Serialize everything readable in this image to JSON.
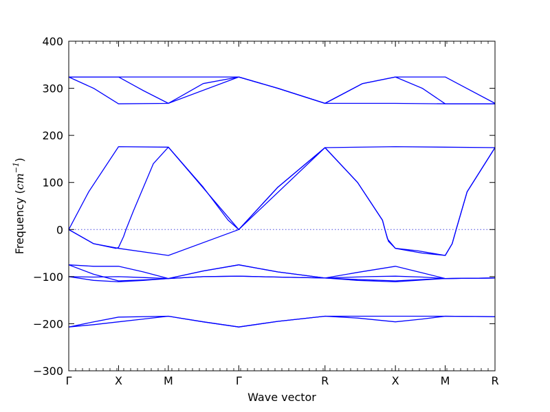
{
  "chart_data": {
    "type": "line",
    "title": "",
    "xlabel": "Wave vector",
    "ylabel_prefix": "Frequency (",
    "ylabel_unit": "cm",
    "ylabel_exp": "−1",
    "ylabel_suffix": ")",
    "ylim": [
      -300,
      400
    ],
    "yticks": [
      -300,
      -200,
      -100,
      0,
      100,
      200,
      300,
      400
    ],
    "grid": false,
    "line_color": "#0000ff",
    "zero_line_color": "#4444dd",
    "high_symmetry_points": [
      {
        "label": "Γ",
        "k": 0.0
      },
      {
        "label": "X",
        "k": 1.0
      },
      {
        "label": "M",
        "k": 2.0
      },
      {
        "label": "Γ",
        "k": 3.414
      },
      {
        "label": "R",
        "k": 5.146
      },
      {
        "label": "X",
        "k": 6.56
      },
      {
        "label": "M",
        "k": 7.56
      },
      {
        "label": "R",
        "k": 8.56
      }
    ],
    "series": [
      {
        "values": [
          [
            0,
            -207
          ],
          [
            0.5,
            -196
          ],
          [
            1.0,
            -186
          ],
          [
            2.0,
            -184
          ],
          [
            2.7,
            -196
          ],
          [
            3.414,
            -207
          ],
          [
            4.2,
            -195
          ],
          [
            5.146,
            -184
          ],
          [
            6.56,
            -184
          ],
          [
            7.56,
            -184
          ],
          [
            8.56,
            -185
          ]
        ]
      },
      {
        "values": [
          [
            0,
            -207
          ],
          [
            0.5,
            -202
          ],
          [
            1.0,
            -196
          ],
          [
            1.5,
            -190
          ],
          [
            2.0,
            -184
          ],
          [
            2.7,
            -196
          ],
          [
            3.414,
            -207
          ],
          [
            4.2,
            -195
          ],
          [
            5.146,
            -184
          ],
          [
            5.8,
            -188
          ],
          [
            6.56,
            -196
          ],
          [
            7.1,
            -190
          ],
          [
            7.56,
            -184
          ],
          [
            8.56,
            -185
          ]
        ]
      },
      {
        "values": [
          [
            0,
            -100
          ],
          [
            0.5,
            -108
          ],
          [
            1.0,
            -111
          ],
          [
            1.5,
            -108
          ],
          [
            2.0,
            -104
          ],
          [
            2.7,
            -100
          ],
          [
            3.414,
            -99
          ],
          [
            4.2,
            -101
          ],
          [
            5.146,
            -103
          ],
          [
            5.8,
            -108
          ],
          [
            6.56,
            -111
          ],
          [
            7.1,
            -107
          ],
          [
            7.56,
            -104
          ],
          [
            8.56,
            -103
          ]
        ]
      },
      {
        "values": [
          [
            0,
            -100
          ],
          [
            0.5,
            -101
          ],
          [
            1.0,
            -100
          ],
          [
            1.5,
            -102
          ],
          [
            2.0,
            -104
          ],
          [
            2.7,
            -100
          ],
          [
            3.414,
            -99
          ],
          [
            4.2,
            -101
          ],
          [
            5.146,
            -103
          ],
          [
            6.0,
            -100
          ],
          [
            6.56,
            -99
          ],
          [
            7.1,
            -101
          ],
          [
            7.56,
            -104
          ],
          [
            8.56,
            -103
          ]
        ]
      },
      {
        "values": [
          [
            0,
            -75
          ],
          [
            0.5,
            -78
          ],
          [
            1.0,
            -78
          ],
          [
            1.5,
            -90
          ],
          [
            2.0,
            -104
          ],
          [
            2.7,
            -88
          ],
          [
            3.414,
            -75
          ],
          [
            4.2,
            -90
          ],
          [
            5.146,
            -103
          ],
          [
            5.8,
            -91
          ],
          [
            6.56,
            -78
          ],
          [
            7.1,
            -92
          ],
          [
            7.56,
            -104
          ],
          [
            8.56,
            -103
          ]
        ]
      },
      {
        "values": [
          [
            0,
            -75
          ],
          [
            0.5,
            -95
          ],
          [
            1.0,
            -109
          ],
          [
            1.5,
            -107
          ],
          [
            2.0,
            -104
          ],
          [
            2.7,
            -88
          ],
          [
            3.414,
            -75
          ],
          [
            4.2,
            -90
          ],
          [
            5.146,
            -103
          ],
          [
            5.8,
            -106
          ],
          [
            6.56,
            -109
          ],
          [
            7.1,
            -106
          ],
          [
            7.56,
            -104
          ],
          [
            8.56,
            -103
          ]
        ]
      },
      {
        "values": [
          [
            0,
            0
          ],
          [
            0.5,
            -30
          ],
          [
            0.95,
            -40
          ],
          [
            1.0,
            -38
          ],
          [
            1.1,
            -15
          ],
          [
            1.15,
            0
          ],
          [
            1.3,
            40
          ],
          [
            1.7,
            140
          ],
          [
            2.0,
            175
          ],
          [
            2.7,
            90
          ],
          [
            3.2,
            20
          ],
          [
            3.414,
            0
          ],
          [
            4.2,
            90
          ],
          [
            5.146,
            174
          ],
          [
            5.8,
            100
          ],
          [
            6.3,
            20
          ],
          [
            6.4,
            -20
          ],
          [
            6.56,
            -40
          ],
          [
            7.1,
            -50
          ],
          [
            7.56,
            -55
          ],
          [
            7.7,
            -30
          ],
          [
            7.78,
            0
          ],
          [
            8.0,
            80
          ],
          [
            8.56,
            174
          ]
        ]
      },
      {
        "values": [
          [
            0,
            0
          ],
          [
            0.4,
            80
          ],
          [
            1.0,
            176
          ],
          [
            2.0,
            175
          ],
          [
            3.414,
            0
          ],
          [
            5.146,
            174
          ],
          [
            6.56,
            176
          ],
          [
            7.56,
            175
          ],
          [
            8.56,
            174
          ]
        ]
      },
      {
        "values": [
          [
            0,
            0
          ],
          [
            0.5,
            -30
          ],
          [
            1.0,
            -40
          ],
          [
            2.0,
            -55
          ],
          [
            3.414,
            0
          ],
          [
            4.2,
            90
          ],
          [
            5.146,
            174
          ],
          [
            5.8,
            100
          ],
          [
            6.3,
            20
          ],
          [
            6.35,
            0
          ],
          [
            6.42,
            -25
          ],
          [
            6.56,
            -40
          ],
          [
            7.0,
            -45
          ],
          [
            7.56,
            -55
          ],
          [
            7.7,
            -30
          ],
          [
            7.78,
            0
          ],
          [
            8.0,
            80
          ],
          [
            8.56,
            174
          ]
        ]
      },
      {
        "values": [
          [
            0,
            324
          ],
          [
            0.5,
            324
          ],
          [
            1.0,
            324
          ],
          [
            2.0,
            324
          ],
          [
            3.414,
            324
          ],
          [
            4.2,
            300
          ],
          [
            5.146,
            268
          ],
          [
            5.9,
            310
          ],
          [
            6.56,
            324
          ],
          [
            7.56,
            324
          ],
          [
            8.56,
            268
          ]
        ]
      },
      {
        "values": [
          [
            0,
            324
          ],
          [
            0.5,
            300
          ],
          [
            1.0,
            267
          ],
          [
            2.0,
            268
          ],
          [
            3.414,
            324
          ],
          [
            4.2,
            300
          ],
          [
            5.146,
            268
          ],
          [
            5.9,
            310
          ],
          [
            6.56,
            324
          ],
          [
            7.1,
            300
          ],
          [
            7.56,
            267
          ],
          [
            8.56,
            267
          ]
        ]
      },
      {
        "values": [
          [
            0,
            324
          ],
          [
            1.0,
            324
          ],
          [
            1.5,
            295
          ],
          [
            2.0,
            268
          ],
          [
            2.7,
            310
          ],
          [
            3.414,
            324
          ],
          [
            4.2,
            300
          ],
          [
            5.146,
            268
          ],
          [
            6.56,
            268
          ],
          [
            7.56,
            267
          ],
          [
            8.56,
            267
          ]
        ]
      }
    ]
  }
}
